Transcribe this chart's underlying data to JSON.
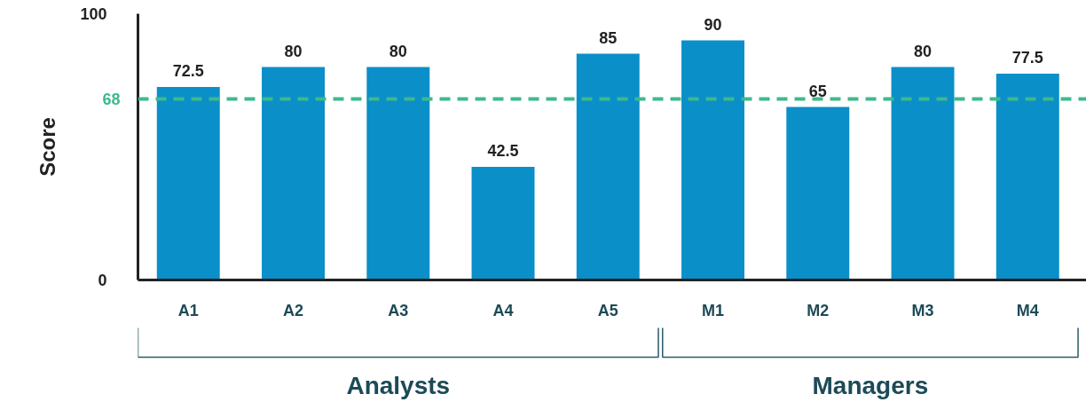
{
  "chart_data": {
    "type": "bar",
    "ylabel": "Score",
    "categories": [
      "A1",
      "A2",
      "A3",
      "A4",
      "A5",
      "M1",
      "M2",
      "M3",
      "M4"
    ],
    "values": [
      72.5,
      80,
      80,
      42.5,
      85,
      90,
      65,
      80,
      77.5
    ],
    "color": "#0a8fc9",
    "ylim": [
      0,
      100
    ],
    "yticks": [
      0,
      100
    ],
    "grid": false,
    "data_labels": true,
    "ref_lines": [
      {
        "axis": "y",
        "value": 68,
        "label": "68",
        "color": "#3dba8a",
        "line_style": "dashed"
      }
    ],
    "annotations": [
      "Analysts",
      "Managers"
    ]
  }
}
